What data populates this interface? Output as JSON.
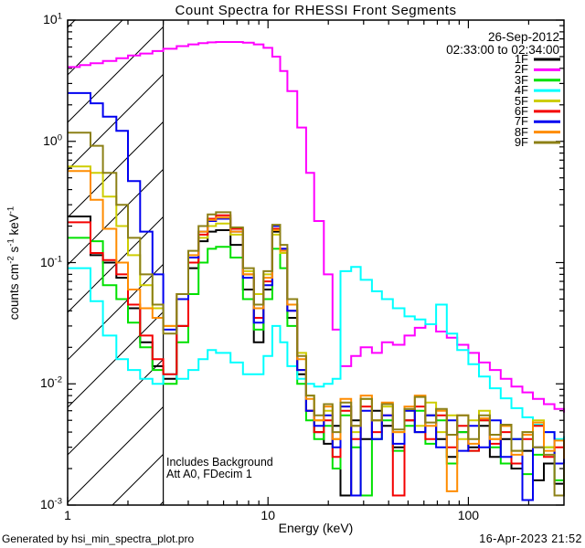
{
  "title": "Count Spectra for RHESSI Front Segments",
  "header": {
    "date_line1": "26-Sep-2012",
    "date_line2": "02:33:00 to 02:34:00"
  },
  "annotation": {
    "line1": "Includes Background",
    "line2": "Att A0, FDecim 1"
  },
  "footer": {
    "left": "Generated by hsi_min_spectra_plot.pro",
    "right": "16-Apr-2023 21:52"
  },
  "chart_data": {
    "type": "line",
    "subtype": "step-histogram-loglog-spectra",
    "title": "Count Spectra for RHESSI Front Segments",
    "xlabel": "Energy (keV)",
    "ylabel": "counts cm-2 s-1 keV-1",
    "ylabel_segments": [
      {
        "t": "counts cm"
      },
      {
        "sup": "-2"
      },
      {
        "t": " s"
      },
      {
        "sup": "-1"
      },
      {
        "t": " keV"
      },
      {
        "sup": "-1"
      }
    ],
    "x_scale": "log",
    "y_scale": "log",
    "xlim": [
      1,
      300
    ],
    "ylim": [
      0.001,
      10
    ],
    "grid": false,
    "legend_position": "top-right-inside",
    "x_ticks_major": [
      1,
      10,
      100
    ],
    "x_tick_labels": [
      "1",
      "10",
      "100"
    ],
    "y_ticks_major": [
      10,
      1,
      0.1,
      0.01,
      0.001
    ],
    "y_tick_labels": [
      {
        "base": "10",
        "exp": "1",
        "value": 10
      },
      {
        "base": "10",
        "exp": "0",
        "value": 1
      },
      {
        "base": "10",
        "exp": "-1",
        "value": 0.1
      },
      {
        "base": "10",
        "exp": "-2",
        "value": 0.01
      },
      {
        "base": "10",
        "exp": "-3",
        "value": 0.001
      }
    ],
    "hatch_region": {
      "x_start": 1,
      "x_end": 3,
      "style": "diagonal-hatch",
      "boundary_line": true
    },
    "x": [
      1.0,
      1.15,
      1.3,
      1.5,
      1.75,
      2.0,
      2.3,
      2.65,
      3.0,
      3.5,
      4.0,
      4.5,
      5.0,
      5.5,
      6.5,
      7.5,
      8.5,
      9.5,
      10.5,
      11.5,
      12.5,
      14,
      15.5,
      17,
      19,
      21,
      23,
      26,
      29,
      33,
      37,
      42,
      48,
      54,
      61,
      69,
      78,
      88,
      100,
      113,
      128,
      145,
      164,
      186,
      210,
      238,
      269,
      300
    ],
    "series": [
      {
        "name": "1F",
        "color": "#000000",
        "values": [
          0.24,
          0.24,
          0.115,
          0.1,
          0.075,
          0.042,
          0.022,
          0.014,
          0.011,
          0.03,
          0.09,
          0.15,
          0.18,
          0.185,
          0.14,
          0.06,
          0.022,
          0.06,
          0.18,
          0.12,
          0.035,
          0.012,
          0.006,
          0.004,
          0.0032,
          0.0045,
          0.0012,
          0.005,
          0.0035,
          0.006,
          0.0045,
          0.003,
          0.005,
          0.004,
          0.0055,
          0.0035,
          0.0025,
          0.004,
          0.003,
          0.0045,
          0.0025,
          0.0035,
          0.002,
          0.0028,
          0.0016,
          0.0022,
          0.0015,
          0.0018
        ]
      },
      {
        "name": "2F",
        "color": "#ff00ff",
        "values": [
          4.1,
          4.25,
          4.4,
          4.6,
          4.85,
          5.1,
          5.3,
          5.55,
          5.8,
          6.1,
          6.3,
          6.45,
          6.55,
          6.6,
          6.6,
          6.5,
          6.3,
          5.9,
          5.0,
          3.8,
          2.6,
          1.3,
          0.55,
          0.22,
          0.08,
          0.028,
          0.014,
          0.017,
          0.02,
          0.018,
          0.022,
          0.021,
          0.025,
          0.029,
          0.031,
          0.027,
          0.024,
          0.021,
          0.018,
          0.015,
          0.013,
          0.011,
          0.0095,
          0.0085,
          0.0075,
          0.0068,
          0.0062,
          0.0058
        ]
      },
      {
        "name": "3F",
        "color": "#00e100",
        "values": [
          0.16,
          0.16,
          0.15,
          0.065,
          0.05,
          0.032,
          0.02,
          0.013,
          0.01,
          0.022,
          0.055,
          0.1,
          0.13,
          0.135,
          0.11,
          0.05,
          0.028,
          0.05,
          0.13,
          0.09,
          0.03,
          0.01,
          0.005,
          0.0035,
          0.0045,
          0.002,
          0.0055,
          0.003,
          0.0012,
          0.0035,
          0.005,
          0.0028,
          0.0045,
          0.006,
          0.0032,
          0.005,
          0.0022,
          0.004,
          0.0028,
          0.005,
          0.003,
          0.0022,
          0.0035,
          0.0018,
          0.0026,
          0.003,
          0.0016,
          0.0022
        ]
      },
      {
        "name": "4F",
        "color": "#00ffff",
        "values": [
          0.09,
          0.09,
          0.048,
          0.025,
          0.016,
          0.013,
          0.011,
          0.01,
          0.012,
          0.011,
          0.013,
          0.016,
          0.019,
          0.018,
          0.015,
          0.012,
          0.012,
          0.017,
          0.03,
          0.022,
          0.014,
          0.011,
          0.01,
          0.0095,
          0.01,
          0.011,
          0.085,
          0.092,
          0.072,
          0.058,
          0.05,
          0.042,
          0.036,
          0.034,
          0.031,
          0.045,
          0.026,
          0.019,
          0.0145,
          0.0115,
          0.0092,
          0.0076,
          0.0063,
          0.0053,
          0.0046,
          0.004,
          0.0035,
          0.0037
        ]
      },
      {
        "name": "5F",
        "color": "#cdcd00",
        "values": [
          0.62,
          0.62,
          0.55,
          0.35,
          0.2,
          0.115,
          0.065,
          0.042,
          0.03,
          0.05,
          0.1,
          0.16,
          0.2,
          0.21,
          0.17,
          0.085,
          0.055,
          0.08,
          0.17,
          0.12,
          0.045,
          0.018,
          0.008,
          0.005,
          0.006,
          0.0035,
          0.0065,
          0.004,
          0.0075,
          0.005,
          0.0065,
          0.004,
          0.006,
          0.0045,
          0.007,
          0.004,
          0.0055,
          0.0035,
          0.005,
          0.006,
          0.0035,
          0.0045,
          0.0028,
          0.004,
          0.005,
          0.003,
          0.0022,
          0.0026
        ]
      },
      {
        "name": "6F",
        "color": "#f40000",
        "values": [
          0.215,
          0.215,
          0.12,
          0.105,
          0.08,
          0.045,
          0.025,
          0.016,
          0.012,
          0.03,
          0.1,
          0.17,
          0.23,
          0.245,
          0.19,
          0.08,
          0.035,
          0.07,
          0.19,
          0.13,
          0.04,
          0.013,
          0.006,
          0.004,
          0.005,
          0.0025,
          0.006,
          0.0035,
          0.0065,
          0.004,
          0.0055,
          0.0012,
          0.005,
          0.0065,
          0.0035,
          0.0055,
          0.003,
          0.0045,
          0.0028,
          0.005,
          0.0032,
          0.004,
          0.0022,
          0.0035,
          0.0045,
          0.0025,
          0.003,
          0.002
        ]
      },
      {
        "name": "7F",
        "color": "#0000f0",
        "values": [
          2.5,
          2.5,
          2.06,
          1.6,
          1.22,
          0.47,
          0.18,
          0.08,
          0.028,
          0.05,
          0.11,
          0.18,
          0.22,
          0.23,
          0.18,
          0.075,
          0.032,
          0.065,
          0.2,
          0.13,
          0.04,
          0.013,
          0.006,
          0.0045,
          0.0055,
          0.003,
          0.0065,
          0.0012,
          0.006,
          0.0035,
          0.0055,
          0.0032,
          0.006,
          0.004,
          0.0055,
          0.003,
          0.005,
          0.0028,
          0.0045,
          0.003,
          0.005,
          0.0025,
          0.0035,
          0.0011,
          0.003,
          0.004,
          0.0022,
          0.0028
        ]
      },
      {
        "name": "8F",
        "color": "#ff8c00",
        "values": [
          0.57,
          0.57,
          0.33,
          0.19,
          0.1,
          0.06,
          0.042,
          0.035,
          0.03,
          0.055,
          0.115,
          0.18,
          0.225,
          0.235,
          0.18,
          0.08,
          0.042,
          0.075,
          0.185,
          0.125,
          0.045,
          0.016,
          0.0075,
          0.005,
          0.0065,
          0.0035,
          0.0075,
          0.0045,
          0.008,
          0.005,
          0.007,
          0.004,
          0.0065,
          0.008,
          0.0045,
          0.006,
          0.0013,
          0.0055,
          0.0032,
          0.0052,
          0.0035,
          0.0045,
          0.0026,
          0.0038,
          0.0048,
          0.0028,
          0.0034,
          0.0024
        ]
      },
      {
        "name": "9F",
        "color": "#8c8016",
        "values": [
          1.18,
          1.18,
          0.92,
          0.55,
          0.3,
          0.16,
          0.08,
          0.045,
          0.026,
          0.055,
          0.125,
          0.2,
          0.25,
          0.26,
          0.195,
          0.09,
          0.045,
          0.085,
          0.205,
          0.14,
          0.05,
          0.017,
          0.008,
          0.0055,
          0.0068,
          0.004,
          0.007,
          0.0045,
          0.0075,
          0.005,
          0.0068,
          0.0042,
          0.0062,
          0.0078,
          0.0048,
          0.0062,
          0.0038,
          0.0055,
          0.0035,
          0.0055,
          0.0038,
          0.0046,
          0.0028,
          0.004,
          0.003,
          0.0026,
          0.0012,
          0.0022
        ]
      }
    ]
  }
}
